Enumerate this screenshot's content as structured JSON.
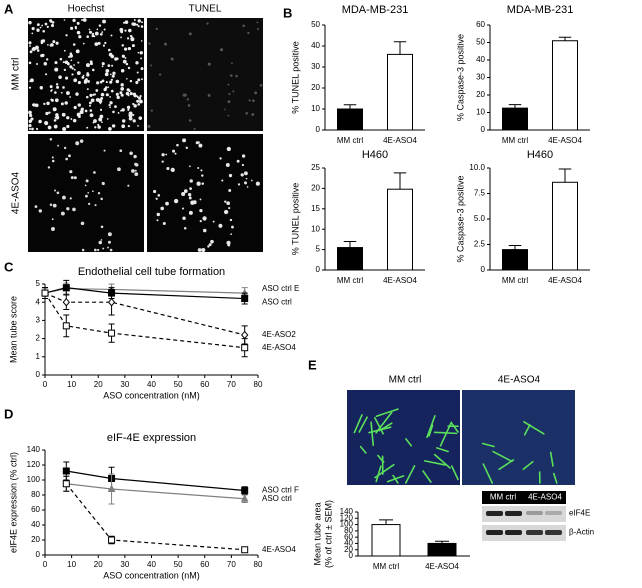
{
  "panel_labels": [
    "A",
    "B",
    "C",
    "D",
    "E"
  ],
  "micrographs_a": {
    "columns": [
      "Hoechst",
      "TUNEL"
    ],
    "rows": [
      "MM ctrl",
      "4E-ASO4"
    ]
  },
  "micrographs_e": {
    "columns": [
      "MM ctrl",
      "4E-ASO4"
    ]
  },
  "western_blot": {
    "groups": [
      "MM ctrl",
      "4E-ASO4"
    ],
    "bands": [
      "eIF4E",
      "β-Actin"
    ]
  },
  "chart_data": [
    {
      "type": "bar",
      "title": "MDA-MB-231",
      "y_label": "% TUNEL positive",
      "categories": [
        "MM ctrl",
        "4E-ASO4"
      ],
      "colors": [
        "#000000",
        "#ffffff"
      ],
      "values": [
        10,
        36
      ],
      "errors": [
        2,
        6
      ],
      "ylim": [
        0,
        50
      ],
      "yticks": [
        0,
        10,
        20,
        30,
        40,
        50
      ]
    },
    {
      "type": "bar",
      "title": "MDA-MB-231",
      "y_label": "% Caspase-3 positive",
      "categories": [
        "MM ctrl",
        "4E-ASO4"
      ],
      "colors": [
        "#000000",
        "#ffffff"
      ],
      "values": [
        12.5,
        51
      ],
      "errors": [
        2,
        2
      ],
      "ylim": [
        0,
        60
      ],
      "yticks": [
        0,
        10,
        20,
        30,
        40,
        50,
        60
      ]
    },
    {
      "type": "bar",
      "title": "H460",
      "y_label": "% TUNEL positive",
      "categories": [
        "MM ctrl",
        "4E-ASO4"
      ],
      "colors": [
        "#000000",
        "#ffffff"
      ],
      "values": [
        5.5,
        19.8
      ],
      "errors": [
        1.5,
        4
      ],
      "ylim": [
        0,
        25
      ],
      "yticks": [
        0,
        5,
        10,
        15,
        20,
        25
      ]
    },
    {
      "type": "bar",
      "title": "H460",
      "y_label": "% Caspase-3 positive",
      "categories": [
        "MM ctrl",
        "4E-ASO4"
      ],
      "colors": [
        "#000000",
        "#ffffff"
      ],
      "values": [
        2.0,
        8.6
      ],
      "errors": [
        0.4,
        1.3
      ],
      "ylim": [
        0,
        10
      ],
      "yticks": [
        0,
        2.5,
        {
          "value": 5,
          "label": "5.0"
        },
        7.5,
        {
          "value": 10,
          "label": "10.0"
        }
      ]
    },
    {
      "type": "line",
      "title": "Endothelial cell tube formation",
      "x_label": "ASO concentration (nM)",
      "y_label": "Mean tube score",
      "x": [
        0,
        8,
        25,
        75
      ],
      "xlim": [
        0,
        80
      ],
      "xticks": [
        0,
        10,
        20,
        30,
        40,
        50,
        60,
        70,
        80
      ],
      "ylim": [
        0,
        5
      ],
      "yticks": [
        0,
        1,
        2,
        3,
        4,
        5
      ],
      "series": [
        {
          "name": "ASO ctrl E",
          "color": "#808080",
          "marker": "triangle",
          "filled": true,
          "dashed": false,
          "values": [
            4.5,
            4.75,
            4.7,
            4.5
          ],
          "errors": [
            0.3,
            0.3,
            0.3,
            0.3
          ]
        },
        {
          "name": "ASO ctrl",
          "color": "#000000",
          "marker": "square",
          "filled": true,
          "dashed": false,
          "values": [
            4.5,
            4.8,
            4.5,
            4.2
          ],
          "errors": [
            0.3,
            0.4,
            0.3,
            0.3
          ]
        },
        {
          "name": "4E-ASO2",
          "color": "#000000",
          "marker": "diamond",
          "filled": false,
          "dashed": true,
          "values": [
            4.5,
            4.0,
            4.0,
            2.2
          ],
          "errors": [
            0.3,
            0.4,
            0.7,
            0.5
          ]
        },
        {
          "name": "4E-ASO4",
          "color": "#000000",
          "marker": "square",
          "filled": false,
          "dashed": true,
          "values": [
            4.5,
            2.7,
            2.3,
            1.5
          ],
          "errors": [
            0.3,
            0.6,
            0.5,
            0.5
          ]
        }
      ]
    },
    {
      "type": "line",
      "title": "eIF-4E expression",
      "x_label": "ASO concentration (nM)",
      "y_label": "eIF4E expression (% ctrl)",
      "x": [
        8,
        25,
        75
      ],
      "xlim": [
        0,
        80
      ],
      "xticks": [
        0,
        10,
        20,
        30,
        40,
        50,
        60,
        70,
        80
      ],
      "ylim": [
        0,
        140
      ],
      "yticks": [
        0,
        20,
        40,
        60,
        80,
        100,
        120,
        140
      ],
      "series": [
        {
          "name": "ASO ctrl F",
          "color": "#000000",
          "marker": "square",
          "filled": true,
          "dashed": false,
          "values": [
            112,
            102,
            86
          ],
          "errors": [
            12,
            15,
            5
          ]
        },
        {
          "name": "ASO ctrl",
          "color": "#808080",
          "marker": "triangle",
          "filled": true,
          "dashed": false,
          "values": [
            95,
            88,
            75
          ],
          "errors": [
            10,
            20,
            5
          ]
        },
        {
          "name": "4E-ASO4",
          "color": "#000000",
          "marker": "square",
          "filled": false,
          "dashed": true,
          "values": [
            95,
            20,
            7
          ],
          "errors": [
            10,
            5,
            2
          ]
        }
      ]
    },
    {
      "type": "bar",
      "y_label": [
        "Mean tube area",
        "(% of ctrl ± SEM)"
      ],
      "categories": [
        "MM ctrl",
        "4E-ASO4"
      ],
      "colors": [
        "#ffffff",
        "#000000"
      ],
      "values": [
        100,
        40
      ],
      "errors": [
        15,
        7
      ],
      "ylim": [
        0,
        140
      ],
      "yticks": [
        0,
        20,
        40,
        60,
        80,
        100,
        120,
        140
      ]
    }
  ]
}
